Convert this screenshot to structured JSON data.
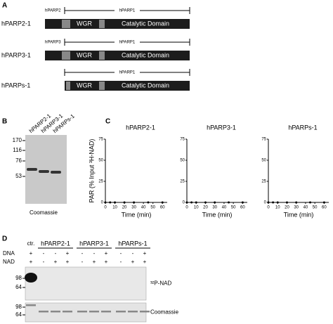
{
  "panel_a": {
    "label": "A",
    "constructs": [
      {
        "name": "hPARP2-1",
        "left_label": "hPARP2",
        "right_label": "hPARP1",
        "domains": [
          "WGR",
          "Catalytic Domain"
        ]
      },
      {
        "name": "hPARP3-1",
        "left_label": "hPARP3",
        "right_label": "hPARP1",
        "domains": [
          "WGR",
          "Catalytic Domain"
        ]
      },
      {
        "name": "hPARPs-1",
        "right_label": "hPARP1",
        "domains": [
          "WGR",
          "Catalytic Domain"
        ]
      }
    ]
  },
  "panel_b": {
    "label": "B",
    "lanes": [
      "hPARP2-1",
      "hPARP3-1",
      "hPARPs-1"
    ],
    "markers": [
      "170",
      "116",
      "76",
      "53"
    ],
    "caption": "Coomassie"
  },
  "panel_c": {
    "label": "C"
  },
  "chart_data": [
    {
      "type": "line",
      "title": "hPARP2-1",
      "xlabel": "Time (min)",
      "ylabel": "PAR (% Input ³H-NAD)",
      "x": [
        0,
        5,
        10,
        20,
        30,
        45,
        60
      ],
      "values": [
        0,
        0,
        0,
        0,
        0,
        0,
        0
      ],
      "color": "#000000",
      "xlim": [
        0,
        65
      ],
      "ylim": [
        0,
        75
      ],
      "xticks": [
        0,
        10,
        20,
        30,
        40,
        50,
        60
      ],
      "yticks": [
        0,
        25,
        50,
        75
      ]
    },
    {
      "type": "line",
      "title": "hPARP3-1",
      "xlabel": "Time (min)",
      "x": [
        0,
        5,
        10,
        20,
        30,
        45,
        60
      ],
      "values": [
        0,
        0,
        0,
        0,
        0,
        0,
        0
      ],
      "color": "#000000",
      "xlim": [
        0,
        65
      ],
      "ylim": [
        0,
        75
      ],
      "xticks": [
        0,
        10,
        20,
        30,
        40,
        50,
        60
      ],
      "yticks": [
        0,
        25,
        50,
        75
      ]
    },
    {
      "type": "line",
      "title": "hPARPs-1",
      "xlabel": "Time (min)",
      "x": [
        0,
        5,
        10,
        20,
        30,
        45,
        60
      ],
      "values": [
        0,
        0,
        0,
        0,
        0,
        0,
        0
      ],
      "color": "#000000",
      "xlim": [
        0,
        65
      ],
      "ylim": [
        0,
        75
      ],
      "xticks": [
        0,
        10,
        20,
        30,
        40,
        50,
        60
      ],
      "yticks": [
        0,
        25,
        50,
        75
      ]
    }
  ],
  "panel_d": {
    "label": "D",
    "control": "ctr.",
    "groups": [
      "hPARP2-1",
      "hPARP3-1",
      "hPARPs-1"
    ],
    "rows": [
      {
        "label": "DNA",
        "signs": [
          "+",
          "-",
          "-",
          "+",
          "-",
          "-",
          "+",
          "-",
          "-",
          "+"
        ]
      },
      {
        "label": "NAD",
        "signs": [
          "+",
          "-",
          "+",
          "+",
          "-",
          "+",
          "+",
          "-",
          "+",
          "+"
        ]
      }
    ],
    "blots": [
      {
        "markers": [
          "98",
          "64"
        ],
        "caption": "³²P-NAD"
      },
      {
        "markers": [
          "98",
          "64"
        ],
        "caption": "Coomassie"
      }
    ]
  }
}
